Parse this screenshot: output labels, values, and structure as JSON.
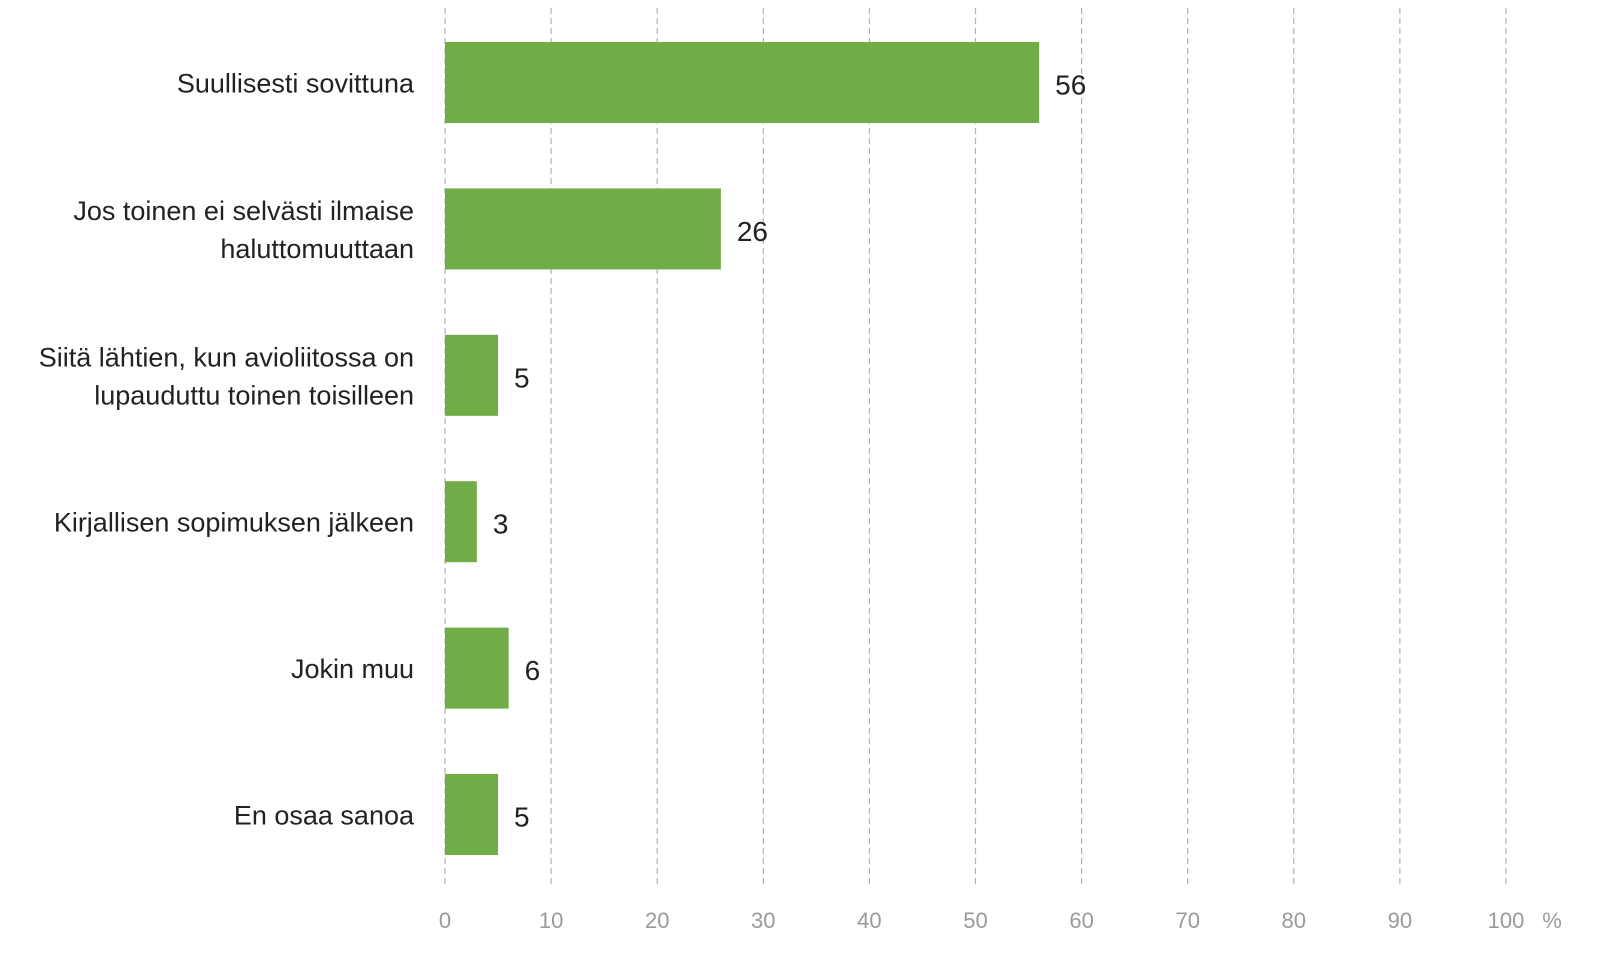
{
  "chart_data": {
    "type": "bar",
    "orientation": "horizontal",
    "categories": [
      [
        "Suullisesti sovittuna"
      ],
      [
        "Jos toinen ei selvästi ilmaise",
        "haluttomuuttaan"
      ],
      [
        "Siitä lähtien, kun avioliitossa on",
        "lupauduttu toinen toisilleen"
      ],
      [
        "Kirjallisen sopimuksen jälkeen"
      ],
      [
        "Jokin muu"
      ],
      [
        "En osaa sanoa"
      ]
    ],
    "values": [
      56,
      26,
      5,
      3,
      6,
      5
    ],
    "data_labels": [
      "56",
      "26",
      "5",
      "3",
      "6",
      "5"
    ],
    "xlim": [
      0,
      100
    ],
    "xticks": [
      0,
      10,
      20,
      30,
      40,
      50,
      60,
      70,
      80,
      90,
      100
    ],
    "x_unit": "%",
    "grid": "vertical-dashed",
    "legend": "none",
    "colors": {
      "bar": "#70ad47",
      "grid": "#b0b0b0",
      "tick_text": "#9a9a9a",
      "text": "#222222"
    }
  }
}
